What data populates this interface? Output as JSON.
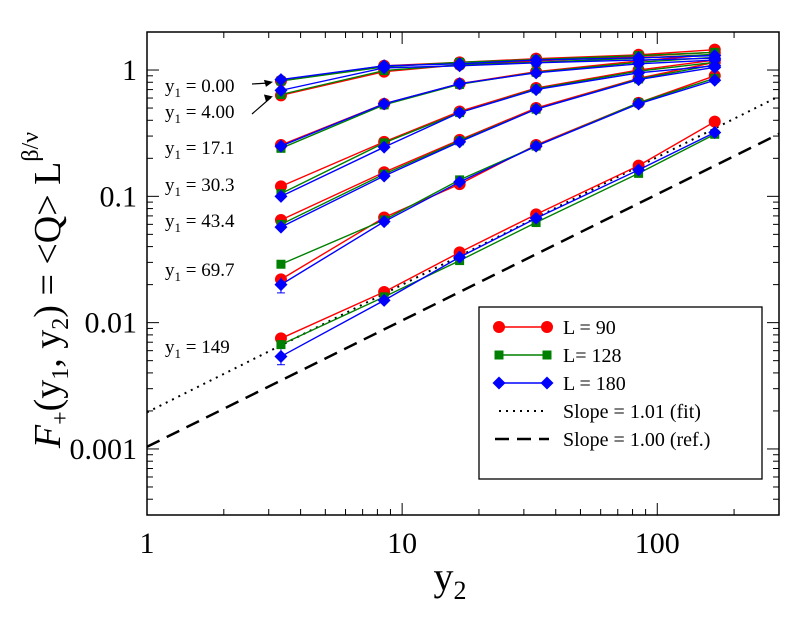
{
  "chart_data": {
    "type": "scatter",
    "scale": "log-log",
    "xlim": [
      1,
      300
    ],
    "ylim": [
      0.0003,
      2
    ],
    "x_ticks": [
      {
        "value": 1,
        "label": "1"
      },
      {
        "value": 10,
        "label": "10"
      },
      {
        "value": 100,
        "label": "100"
      }
    ],
    "y_ticks": [
      {
        "value": 0.001,
        "label": "0.001"
      },
      {
        "value": 0.01,
        "label": "0.01"
      },
      {
        "value": 0.1,
        "label": "0.1"
      },
      {
        "value": 1,
        "label": "1"
      }
    ],
    "xlabel": {
      "main": "y",
      "sub": "2"
    },
    "ylabel": {
      "lead": "F",
      "sub1": "+",
      "mid1": "(y",
      "sub2": "1",
      "mid2": ", y",
      "sub3": "2",
      "mid3": ") = <Q> L",
      "sup": "β/ν"
    },
    "x": [
      3.35,
      8.5,
      16.8,
      33.5,
      84.5,
      168
    ],
    "series": [
      {
        "name": "L = 90",
        "color": "#ff0000",
        "marker": "circle",
        "groups": [
          [
            0.82,
            1.08,
            1.15,
            1.23,
            1.32,
            1.45
          ],
          [
            0.63,
            0.97,
            1.1,
            1.18,
            1.28,
            1.38
          ],
          [
            0.255,
            0.54,
            0.78,
            0.97,
            1.18,
            1.33
          ],
          [
            0.12,
            0.27,
            0.47,
            0.72,
            1.0,
            1.2
          ],
          [
            0.065,
            0.155,
            0.28,
            0.5,
            0.86,
            1.15
          ],
          [
            0.022,
            0.068,
            0.125,
            0.255,
            0.55,
            0.9
          ],
          [
            0.0075,
            0.0175,
            0.036,
            0.072,
            0.175,
            0.39
          ]
        ]
      },
      {
        "name": "L= 128",
        "color": "#008000",
        "marker": "square",
        "groups": [
          [
            0.82,
            1.06,
            1.15,
            1.21,
            1.3,
            1.38
          ],
          [
            0.64,
            0.99,
            1.1,
            1.15,
            1.24,
            1.33
          ],
          [
            0.24,
            0.53,
            0.77,
            0.96,
            1.15,
            1.26
          ],
          [
            0.105,
            0.265,
            0.46,
            0.71,
            0.98,
            1.15
          ],
          [
            0.06,
            0.15,
            0.275,
            0.49,
            0.85,
            1.1
          ],
          [
            0.029,
            0.065,
            0.135,
            0.25,
            0.55,
            0.86
          ],
          [
            0.0067,
            0.016,
            0.031,
            0.062,
            0.152,
            0.31
          ]
        ]
      },
      {
        "name": "L = 180",
        "color": "#0000ff",
        "marker": "diamond",
        "groups": [
          [
            0.84,
            1.08,
            1.12,
            1.2,
            1.25,
            1.3
          ],
          [
            0.69,
            1.04,
            1.08,
            1.14,
            1.2,
            1.24
          ],
          [
            0.25,
            0.54,
            0.78,
            0.95,
            1.12,
            1.2
          ],
          [
            0.1,
            0.245,
            0.46,
            0.7,
            0.95,
            1.08
          ],
          [
            0.057,
            0.145,
            0.27,
            0.49,
            0.84,
            1.05
          ],
          [
            0.02,
            0.063,
            0.13,
            0.25,
            0.54,
            0.83
          ],
          [
            0.0054,
            0.015,
            0.033,
            0.067,
            0.162,
            0.32
          ]
        ]
      }
    ],
    "reference_lines": [
      {
        "name": "Slope = 1.01 (fit)",
        "style": "dotted",
        "slope": 1.01,
        "y_at_x1": 0.00195
      },
      {
        "name": "Slope = 1.00 (ref.)",
        "style": "dashed",
        "slope": 1.0,
        "y_at_x1": 0.00104
      }
    ],
    "annotations": [
      {
        "prefix": "y",
        "sub": "1",
        "text": " = 0.00",
        "arrow": true
      },
      {
        "prefix": "y",
        "sub": "1",
        "text": " = 4.00",
        "arrow": true
      },
      {
        "prefix": "y",
        "sub": "1",
        "text": " = 17.1",
        "arrow": false
      },
      {
        "prefix": "y",
        "sub": "1",
        "text": " = 30.3",
        "arrow": false
      },
      {
        "prefix": "y",
        "sub": "1",
        "text": " = 43.4",
        "arrow": false
      },
      {
        "prefix": "y",
        "sub": "1",
        "text": " = 69.7",
        "arrow": false
      },
      {
        "prefix": "y",
        "sub": "1",
        "text": " = 149",
        "arrow": false
      }
    ],
    "legend_position": "bottom-right"
  }
}
